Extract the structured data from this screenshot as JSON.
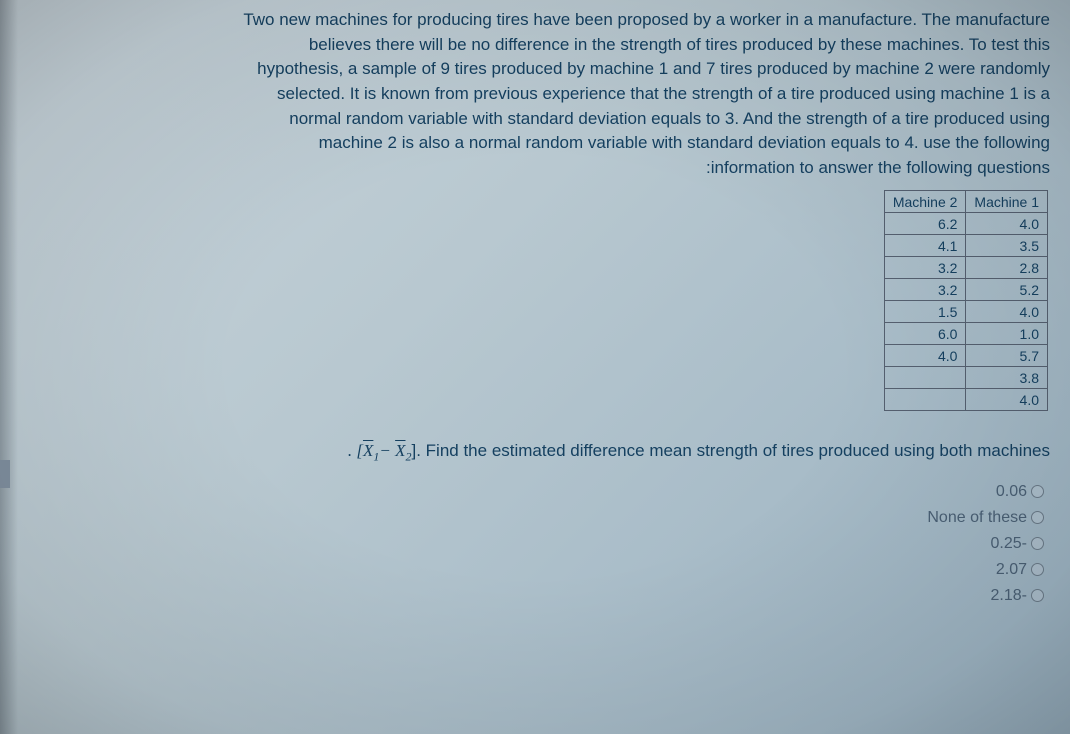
{
  "problem": {
    "line1": "Two new machines for producing tires have been proposed by a worker in a manufacture. The manufacture",
    "line2": "believes there will be no difference in the strength of tires produced by these machines. To test this",
    "line3": "hypothesis, a sample of 9 tires produced by machine 1 and 7 tires produced by machine 2 were randomly",
    "line4": "selected. It is known from previous experience that the strength of a tire produced using machine 1 is a",
    "line5": "normal random variable with standard deviation equals to 3. And the strength of a tire produced using",
    "line6": "machine 2 is also a normal random variable with standard deviation equals to 4.  use the following",
    "line7": ":information to answer the following questions"
  },
  "table": {
    "headers": {
      "col1": "Machine 2",
      "col2": "Machine 1"
    },
    "rows": [
      {
        "m2": "6.2",
        "m1": "4.0"
      },
      {
        "m2": "4.1",
        "m1": "3.5"
      },
      {
        "m2": "3.2",
        "m1": "2.8"
      },
      {
        "m2": "3.2",
        "m1": "5.2"
      },
      {
        "m2": "1.5",
        "m1": "4.0"
      },
      {
        "m2": "6.0",
        "m1": "1.0"
      },
      {
        "m2": "4.0",
        "m1": "5.7"
      },
      {
        "m2": "",
        "m1": "3.8"
      },
      {
        "m2": "",
        "m1": "4.0"
      }
    ]
  },
  "question": {
    "formula_x1": "X",
    "formula_sub1": "1",
    "formula_minus": "−",
    "formula_x2": "X",
    "formula_sub2": "2",
    "prompt": "]. Find the estimated difference mean strength of tires produced using both machines"
  },
  "options": {
    "opt1": "0.06",
    "opt2": "None of these",
    "opt3": "0.25-",
    "opt4": "2.07",
    "opt5": "2.18-"
  },
  "colors": {
    "text_primary": "#154060",
    "text_option": "#4a6075",
    "border": "#556070",
    "bg_start": "#c8d4db",
    "bg_end": "#98b0c0"
  }
}
